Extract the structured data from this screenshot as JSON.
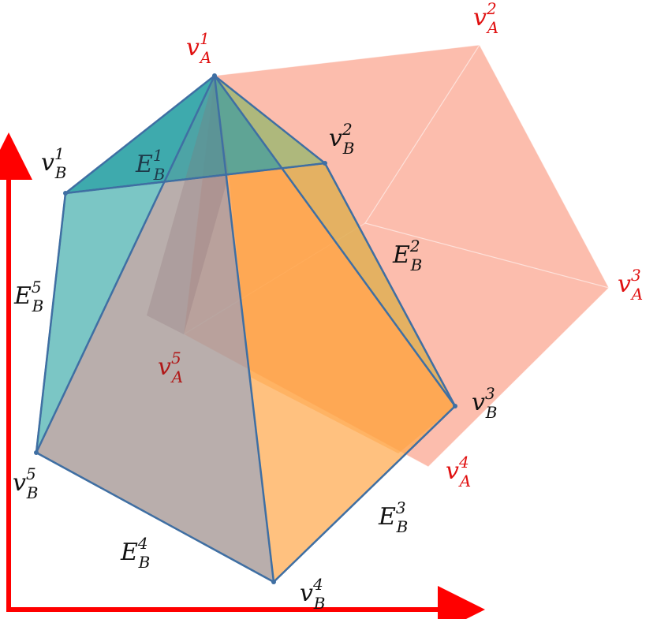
{
  "diagram": {
    "colors": {
      "axes": "#ff0000",
      "polygon_A": "#fbb3a1",
      "polygon_B_orange": "#ffa94d",
      "polygon_B_teal": "#3fb0ae",
      "edge_lines": "#3f6fa3",
      "label_A": "#e01010",
      "label_B": "#111111"
    },
    "labels_A": [
      {
        "base": "v",
        "sub": "A",
        "sup": "1"
      },
      {
        "base": "v",
        "sub": "A",
        "sup": "2"
      },
      {
        "base": "v",
        "sub": "A",
        "sup": "3"
      },
      {
        "base": "v",
        "sub": "A",
        "sup": "4"
      },
      {
        "base": "v",
        "sub": "A",
        "sup": "5"
      }
    ],
    "labels_vB": [
      {
        "base": "v",
        "sub": "B",
        "sup": "1"
      },
      {
        "base": "v",
        "sub": "B",
        "sup": "2"
      },
      {
        "base": "v",
        "sub": "B",
        "sup": "3"
      },
      {
        "base": "v",
        "sub": "B",
        "sup": "4"
      },
      {
        "base": "v",
        "sub": "B",
        "sup": "5"
      }
    ],
    "labels_EB": [
      {
        "base": "E",
        "sub": "B",
        "sup": "1"
      },
      {
        "base": "E",
        "sub": "B",
        "sup": "2"
      },
      {
        "base": "E",
        "sub": "B",
        "sup": "3"
      },
      {
        "base": "E",
        "sub": "B",
        "sup": "4"
      },
      {
        "base": "E",
        "sub": "B",
        "sup": "5"
      }
    ]
  }
}
